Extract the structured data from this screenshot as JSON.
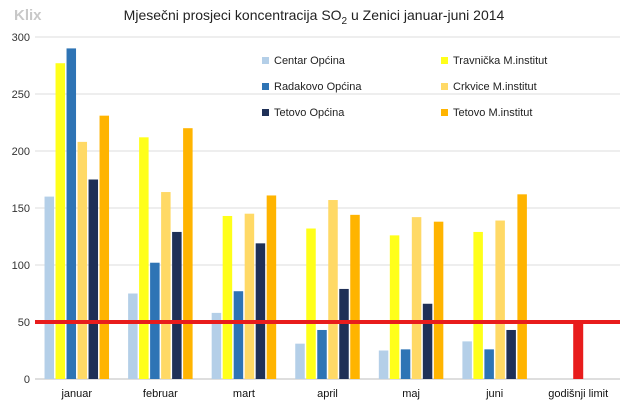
{
  "chart_data": {
    "type": "bar",
    "title_parts": [
      "Mjesečni prosjeci koncentracija SO",
      "2",
      " u Zenici januar-juni 2014"
    ],
    "xlabel": "",
    "ylabel": "",
    "ylim": [
      0,
      300
    ],
    "yticks": [
      0,
      50,
      100,
      150,
      200,
      250,
      300
    ],
    "grid": true,
    "legend_position": "top-right",
    "categories": [
      "januar",
      "februar",
      "mart",
      "april",
      "maj",
      "juni",
      "godišnji limit"
    ],
    "series": [
      {
        "name": "Centar Općina",
        "color": "#b4cfe8",
        "values": [
          160,
          75,
          58,
          31,
          25,
          33,
          null
        ]
      },
      {
        "name": "Travnička M.institut",
        "color": "#ffff1a",
        "values": [
          277,
          212,
          143,
          132,
          126,
          129,
          null
        ]
      },
      {
        "name": "Radakovo  Općina",
        "color": "#2e74b5",
        "values": [
          290,
          102,
          77,
          43,
          26,
          26,
          null
        ]
      },
      {
        "name": "Crkvice M.institut",
        "color": "#ffd966",
        "values": [
          208,
          164,
          145,
          157,
          142,
          139,
          null
        ]
      },
      {
        "name": "Tetovo Općina",
        "color": "#1f3057",
        "values": [
          175,
          129,
          119,
          79,
          66,
          43,
          null
        ]
      },
      {
        "name": "Tetovo M.institut",
        "color": "#ffb400",
        "values": [
          231,
          220,
          161,
          144,
          138,
          162,
          null
        ]
      }
    ],
    "limit": {
      "value": 50,
      "color": "#e81c1c",
      "category": "godišnji limit"
    }
  },
  "watermark": "Klix"
}
